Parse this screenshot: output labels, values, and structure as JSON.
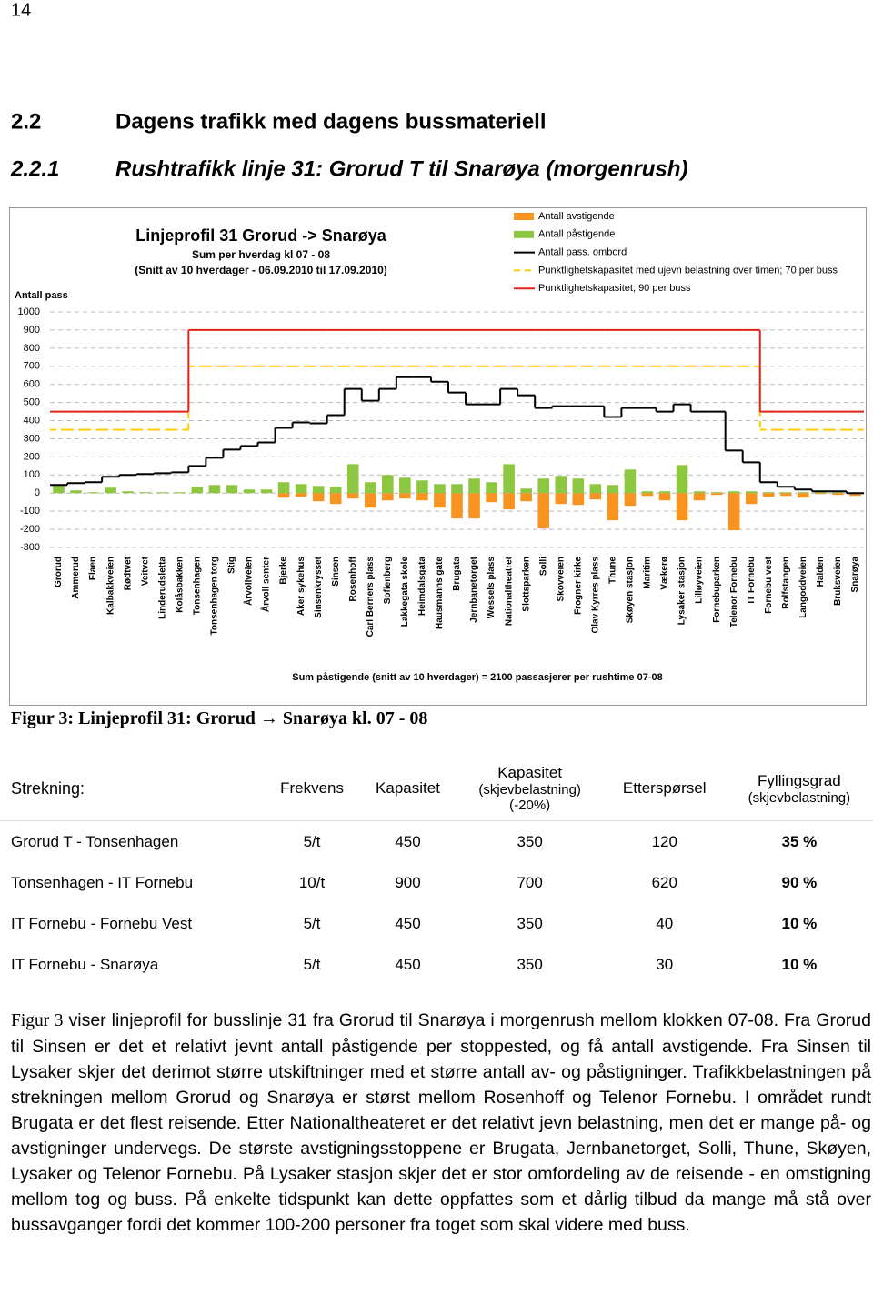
{
  "page_number": "14",
  "heading1": {
    "number": "2.2",
    "text": "Dagens trafikk med dagens bussmateriell"
  },
  "heading2": {
    "number": "2.2.1",
    "text": "Rushtrafikk linje 31: Grorud T til Snarøya (morgenrush)"
  },
  "chart_data": {
    "type": "bar",
    "title": "Linjeprofil 31 Grorud -> Snarøya",
    "subtitle": [
      "Sum per hverdag kl 07 - 08",
      "(Snitt av 10 hverdager - 06.09.2010 til 17.09.2010)"
    ],
    "y_label": "Antall pass",
    "footnote": "Sum påstigende (snitt av 10 hverdager) = 2100 passasjerer per rushtime 07-08",
    "categories": [
      "Grorud",
      "Ammerud",
      "Flaen",
      "Kalbakkveien",
      "Rødtvet",
      "Veitvet",
      "Linderudsletta",
      "Kolåsbakken",
      "Tonsenhagen",
      "Tonsenhagen torg",
      "Stig",
      "Årvollveien",
      "Årvoll senter",
      "Bjerke",
      "Aker sykehus",
      "Sinsenkrysset",
      "Sinsen",
      "Rosenhoff",
      "Carl Berners plass",
      "Sofienberg",
      "Lakkegata skole",
      "Heimdalsgata",
      "Hausmanns gate",
      "Brugata",
      "Jernbanetorget",
      "Wessels plass",
      "Nationaltheatret",
      "Slottsparken",
      "Solli",
      "Skovveien",
      "Frogner kirke",
      "Olav Kyrres plass",
      "Thune",
      "Skøyen stasjon",
      "Maritim",
      "Vækerø",
      "Lysaker stasjon",
      "Lilløyveien",
      "Fornebuparken",
      "Telenor Fornebu",
      "IT Fornebu",
      "Fornebu vest",
      "Rolfstangen",
      "Langoddveien",
      "Halden",
      "Bruksveien",
      "Snarøya"
    ],
    "series": [
      {
        "name": "Antall avstigende",
        "color": "#f7931e",
        "type": "bar",
        "values": [
          0,
          0,
          0,
          0,
          0,
          0,
          0,
          0,
          0,
          0,
          0,
          0,
          0,
          -25,
          -20,
          -45,
          -60,
          -30,
          -80,
          -40,
          -30,
          -40,
          -80,
          -140,
          -140,
          -50,
          -90,
          -45,
          -195,
          -60,
          -65,
          -35,
          -150,
          -70,
          -15,
          -40,
          -150,
          -40,
          -10,
          -205,
          -60,
          -20,
          -15,
          -25,
          -5,
          -10,
          -15
        ]
      },
      {
        "name": "Antall påstigende",
        "color": "#8dc63f",
        "type": "bar",
        "values": [
          45,
          15,
          5,
          30,
          10,
          5,
          5,
          5,
          35,
          45,
          45,
          20,
          20,
          60,
          50,
          40,
          35,
          160,
          60,
          100,
          85,
          70,
          50,
          50,
          80,
          60,
          160,
          25,
          80,
          95,
          80,
          50,
          45,
          130,
          10,
          10,
          155,
          10,
          5,
          10,
          10,
          5,
          5,
          5,
          5,
          5,
          0
        ]
      },
      {
        "name": "Antall pass. ombord",
        "color": "#000000",
        "type": "step",
        "values": [
          45,
          55,
          60,
          90,
          100,
          105,
          110,
          115,
          150,
          195,
          240,
          260,
          280,
          360,
          390,
          385,
          430,
          575,
          510,
          575,
          640,
          640,
          615,
          555,
          490,
          490,
          575,
          540,
          470,
          480,
          480,
          480,
          420,
          470,
          470,
          450,
          490,
          450,
          450,
          235,
          170,
          60,
          35,
          20,
          10,
          10,
          0
        ]
      },
      {
        "name": "Punktlighetskapasitet med ujevn belastning over timen; 70 per buss",
        "color": "#ffcc00",
        "type": "step",
        "line_style": "dashed",
        "values": [
          350,
          350,
          350,
          350,
          350,
          350,
          350,
          350,
          700,
          700,
          700,
          700,
          700,
          700,
          700,
          700,
          700,
          700,
          700,
          700,
          700,
          700,
          700,
          700,
          700,
          700,
          700,
          700,
          700,
          700,
          700,
          700,
          700,
          700,
          700,
          700,
          700,
          700,
          700,
          700,
          700,
          350,
          350,
          350,
          350,
          350,
          350
        ]
      },
      {
        "name": "Punktlighetskapasitet; 90 per buss",
        "color": "#e2231a",
        "type": "step",
        "line_style": "solid",
        "values": [
          450,
          450,
          450,
          450,
          450,
          450,
          450,
          450,
          900,
          900,
          900,
          900,
          900,
          900,
          900,
          900,
          900,
          900,
          900,
          900,
          900,
          900,
          900,
          900,
          900,
          900,
          900,
          900,
          900,
          900,
          900,
          900,
          900,
          900,
          900,
          900,
          900,
          900,
          900,
          900,
          900,
          450,
          450,
          450,
          450,
          450,
          450
        ]
      }
    ],
    "ylim": [
      -300,
      1000
    ],
    "yticks": [
      1000,
      900,
      800,
      700,
      600,
      500,
      400,
      300,
      200,
      100,
      0,
      -100,
      -200,
      -300
    ],
    "grid": true
  },
  "caption": "Figur 3: Linjeprofil 31: Grorud → Snarøya kl. 07 - 08",
  "table": {
    "header": [
      [
        "Strekning:"
      ],
      [
        "Frekvens"
      ],
      [
        "Kapasitet"
      ],
      [
        "Kapasitet",
        "(skjevbelastning)",
        "(-20%)"
      ],
      [
        "Etterspørsel"
      ],
      [
        "Fyllingsgrad",
        "(skjevbelastning)"
      ]
    ],
    "rows": [
      [
        "Grorud T - Tonsenhagen",
        "5/t",
        "450",
        "350",
        "120",
        "35 %"
      ],
      [
        "Tonsenhagen - IT Fornebu",
        "10/t",
        "900",
        "700",
        "620",
        "90 %"
      ],
      [
        "IT Fornebu - Fornebu Vest",
        "5/t",
        "450",
        "350",
        "40",
        "10 %"
      ],
      [
        "IT Fornebu - Snarøya",
        "5/t",
        "450",
        "350",
        "30",
        "10 %"
      ]
    ]
  },
  "paragraph": {
    "ref": "Figur 3",
    "text": " viser linjeprofil for busslinje 31 fra Grorud til Snarøya i morgenrush mellom klokken 07-08. Fra Grorud til Sinsen er det et relativt jevnt antall påstigende per stoppested, og få antall avstigende. Fra Sinsen til Lysaker skjer det derimot større utskiftninger med et større antall av- og påstigninger. Trafikkbelastningen på strekningen mellom Grorud og Snarøya er størst mellom Rosenhoff og Telenor Fornebu. I området rundt Brugata er det flest reisende. Etter Nationaltheateret er det relativt jevn belastning, men det er mange på- og avstigninger undervegs. De største avstigningsstoppene er Brugata, Jernbanetorget, Solli, Thune, Skøyen, Lysaker og Telenor Fornebu. På Lysaker stasjon skjer det er stor omfordeling av de reisende - en omstigning mellom tog og buss. På enkelte tidspunkt kan dette oppfattes som et dårlig tilbud da mange må stå over bussavganger fordi det kommer 100-200 personer fra toget som skal videre med buss."
  }
}
